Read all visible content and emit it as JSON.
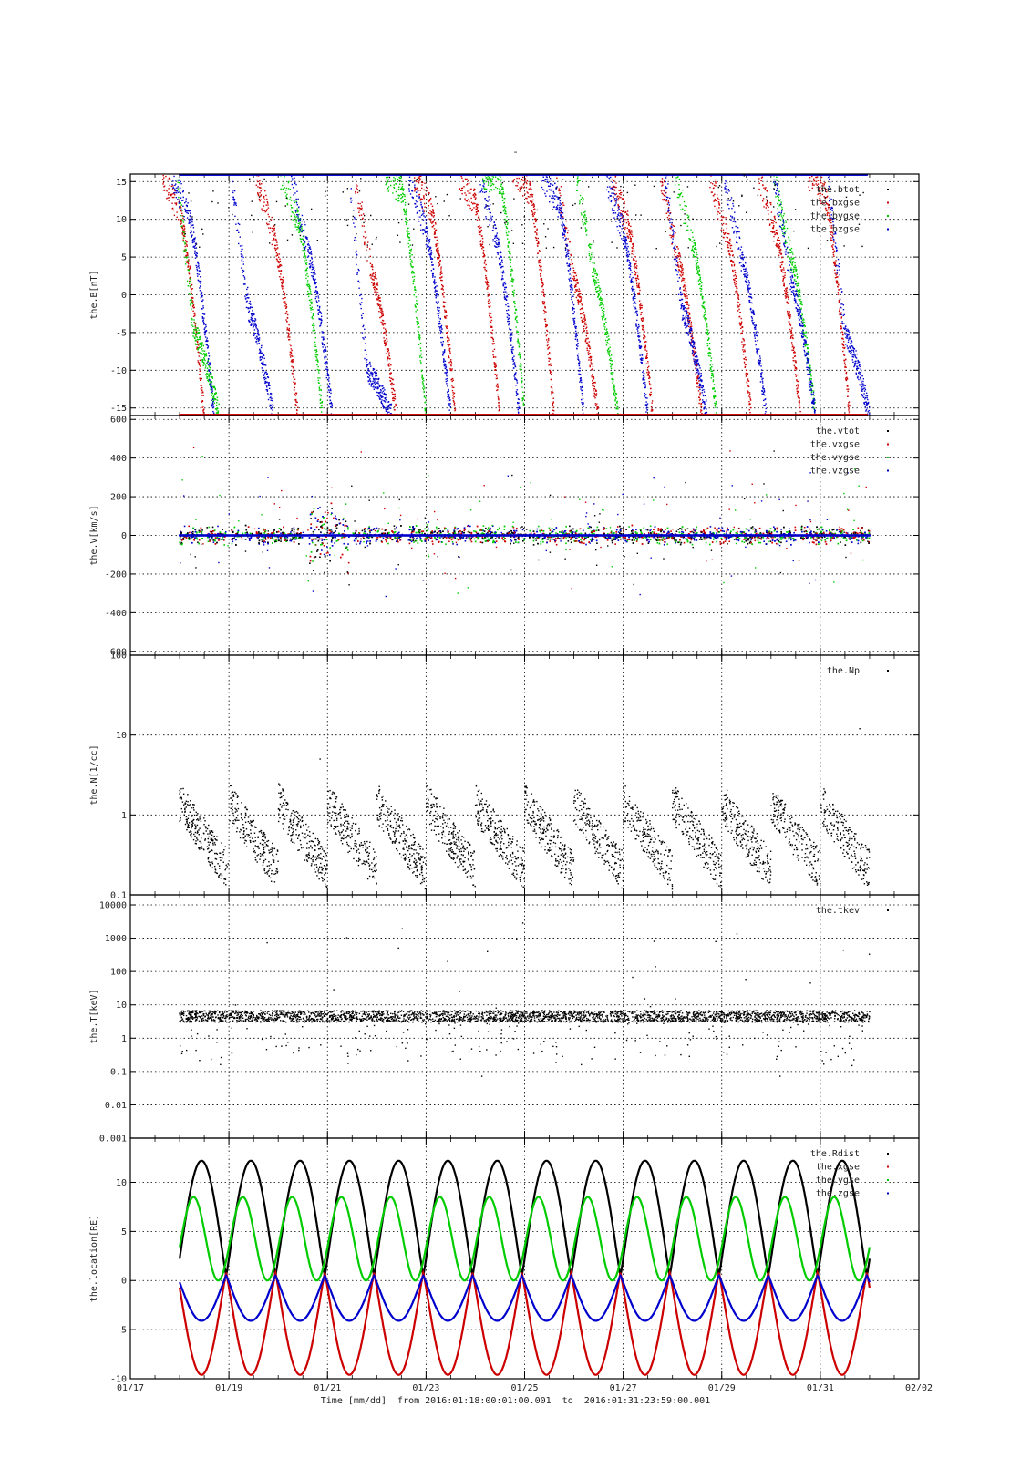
{
  "title": "-",
  "footer": "Time [mm/dd]  from 2016:01:18:00:01:00.001  to  2016:01:31:23:59:00.001",
  "x_axis": {
    "ticks": [
      "01/17",
      "01/19",
      "01/21",
      "01/23",
      "01/25",
      "01/27",
      "01/29",
      "01/31",
      "02/02"
    ],
    "tick_days": [
      0,
      2,
      4,
      6,
      8,
      10,
      12,
      14,
      16
    ],
    "range_days": [
      0,
      16
    ],
    "data_range_days": [
      1.0,
      15.0
    ]
  },
  "chart_data": [
    {
      "type": "scatter",
      "ylabel": "the.B[nT]",
      "ylim": [
        -16,
        16
      ],
      "yscale": "linear",
      "yticks": [
        "15",
        "10",
        "5",
        "0",
        "-5",
        "-10",
        "-15"
      ],
      "ytick_values": [
        15,
        10,
        5,
        0,
        -5,
        -10,
        -15
      ],
      "grid": true,
      "legend_position": "top-right",
      "series": [
        {
          "name": "the.btot",
          "color": "#000000",
          "values_desc": []
        },
        {
          "name": "the.bxgse",
          "color": "#cc0000",
          "peaks": [
            [
              1.0,
              11
            ],
            [
              2.9,
              8
            ],
            [
              4.9,
              3
            ],
            [
              6.1,
              11
            ],
            [
              7.0,
              12
            ],
            [
              8.1,
              14
            ],
            [
              9.0,
              2
            ],
            [
              10.1,
              9
            ],
            [
              11.1,
              5
            ],
            [
              12.1,
              8
            ],
            [
              13.1,
              8
            ],
            [
              14.1,
              13
            ]
          ]
        },
        {
          "name": "the.bygse",
          "color": "#00cc00",
          "peaks": [
            [
              1.3,
              -5
            ],
            [
              3.4,
              10
            ],
            [
              5.5,
              14
            ],
            [
              7.5,
              15
            ],
            [
              9.4,
              3
            ],
            [
              11.4,
              7
            ],
            [
              13.4,
              5
            ]
          ]
        },
        {
          "name": "the.bzgse",
          "color": "#0000cc",
          "peaks": [
            [
              1.2,
              10
            ],
            [
              2.4,
              -2
            ],
            [
              3.6,
              6
            ],
            [
              4.8,
              -10
            ],
            [
              6.0,
              8
            ],
            [
              7.4,
              8
            ],
            [
              8.7,
              12
            ],
            [
              10.0,
              8
            ],
            [
              11.2,
              -2
            ],
            [
              12.4,
              5
            ],
            [
              13.4,
              2
            ],
            [
              14.5,
              -5
            ]
          ]
        }
      ]
    },
    {
      "type": "scatter",
      "ylabel": "the.V[km/s]",
      "ylim": [
        -620,
        620
      ],
      "yscale": "linear",
      "yticks": [
        "600",
        "400",
        "200",
        "0",
        "-200",
        "-400",
        "-600"
      ],
      "ytick_values": [
        600,
        400,
        200,
        0,
        -200,
        -400,
        -600
      ],
      "grid": true,
      "legend_position": "top-right",
      "series": [
        {
          "name": "the.vtot",
          "color": "#000000"
        },
        {
          "name": "the.vxgse",
          "color": "#cc0000"
        },
        {
          "name": "the.vygse",
          "color": "#00cc00"
        },
        {
          "name": "the.vzgse",
          "color": "#0000cc"
        }
      ]
    },
    {
      "type": "scatter",
      "ylabel": "the.N[1/cc]",
      "ylim": [
        0.1,
        100
      ],
      "yscale": "log",
      "yticks": [
        "100",
        "10",
        "1",
        "0.1"
      ],
      "ytick_values": [
        100,
        10,
        1,
        0.1
      ],
      "grid": true,
      "legend_position": "top-right",
      "series": [
        {
          "name": "the.Np",
          "color": "#000000"
        }
      ]
    },
    {
      "type": "scatter",
      "ylabel": "the.T[keV]",
      "ylim": [
        0.001,
        20000
      ],
      "yscale": "log",
      "yticks": [
        "10000",
        "1000",
        "100",
        "10",
        "1",
        "0.1",
        "0.01",
        "0.001"
      ],
      "ytick_values": [
        10000,
        1000,
        100,
        10,
        1,
        0.1,
        0.01,
        0.001
      ],
      "grid": true,
      "legend_position": "top-right",
      "series": [
        {
          "name": "the.tkev",
          "color": "#000000"
        }
      ]
    },
    {
      "type": "line",
      "ylabel": "the.location[RE]",
      "ylim": [
        -10,
        14.5
      ],
      "yscale": "linear",
      "yticks": [
        "10",
        "5",
        "0",
        "-5",
        "-10"
      ],
      "ytick_values": [
        10,
        5,
        0,
        -5,
        -10
      ],
      "grid": true,
      "legend_position": "top-right",
      "orbit_period_days": 1.0,
      "series": [
        {
          "name": "the.Rdist",
          "color": "#000000",
          "max": 12.2,
          "min": 0.5
        },
        {
          "name": "the.xgse",
          "color": "#cc0000",
          "max": 0.8,
          "min": -9.6
        },
        {
          "name": "the.ygse",
          "color": "#00cc00",
          "max": 8.5,
          "min": 0.0
        },
        {
          "name": "the.zgse",
          "color": "#0000cc",
          "max": 0.5,
          "min": -4.1
        }
      ]
    }
  ]
}
